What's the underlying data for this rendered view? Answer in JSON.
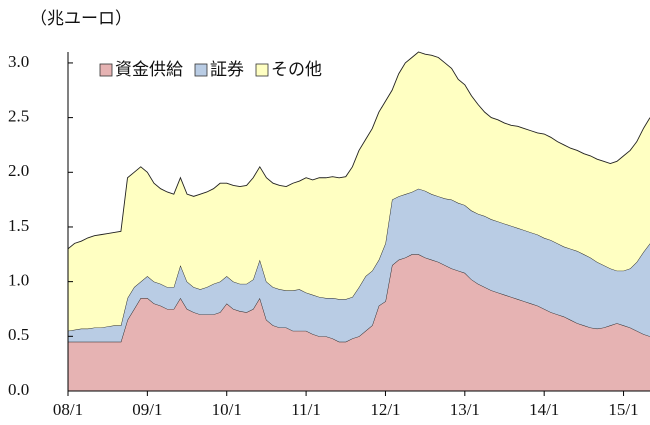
{
  "chart_data": {
    "type": "stacked_area",
    "unit_label": "（兆ユーロ）",
    "categories": [
      "08/1",
      null,
      null,
      null,
      null,
      null,
      null,
      null,
      null,
      null,
      null,
      null,
      "09/1",
      null,
      null,
      null,
      null,
      null,
      null,
      null,
      null,
      null,
      null,
      null,
      "10/1",
      null,
      null,
      null,
      null,
      null,
      null,
      null,
      null,
      null,
      null,
      null,
      "11/1",
      null,
      null,
      null,
      null,
      null,
      null,
      null,
      null,
      null,
      null,
      null,
      "12/1",
      null,
      null,
      null,
      null,
      null,
      null,
      null,
      null,
      null,
      null,
      null,
      "13/1",
      null,
      null,
      null,
      null,
      null,
      null,
      null,
      null,
      null,
      null,
      null,
      "14/1",
      null,
      null,
      null,
      null,
      null,
      null,
      null,
      null,
      null,
      null,
      null,
      "15/1",
      null,
      null,
      null,
      null
    ],
    "series": [
      {
        "name": "資金供給",
        "color": "#e6b3b3",
        "values": [
          0.45,
          0.45,
          0.45,
          0.45,
          0.45,
          0.45,
          0.45,
          0.45,
          0.45,
          0.65,
          0.75,
          0.85,
          0.85,
          0.8,
          0.78,
          0.75,
          0.75,
          0.85,
          0.75,
          0.72,
          0.7,
          0.7,
          0.7,
          0.72,
          0.8,
          0.75,
          0.73,
          0.72,
          0.75,
          0.85,
          0.65,
          0.6,
          0.58,
          0.58,
          0.55,
          0.55,
          0.55,
          0.52,
          0.5,
          0.5,
          0.48,
          0.45,
          0.45,
          0.48,
          0.5,
          0.55,
          0.6,
          0.78,
          0.82,
          1.15,
          1.2,
          1.22,
          1.25,
          1.25,
          1.22,
          1.2,
          1.18,
          1.15,
          1.12,
          1.1,
          1.08,
          1.02,
          0.98,
          0.95,
          0.92,
          0.9,
          0.88,
          0.86,
          0.84,
          0.82,
          0.8,
          0.78,
          0.75,
          0.72,
          0.7,
          0.68,
          0.65,
          0.62,
          0.6,
          0.58,
          0.57,
          0.58,
          0.6,
          0.62,
          0.6,
          0.58,
          0.55,
          0.52,
          0.5
        ]
      },
      {
        "name": "証券",
        "color": "#b9cce4",
        "values": [
          0.1,
          0.11,
          0.12,
          0.12,
          0.13,
          0.13,
          0.14,
          0.15,
          0.15,
          0.2,
          0.2,
          0.15,
          0.2,
          0.2,
          0.2,
          0.2,
          0.2,
          0.3,
          0.25,
          0.23,
          0.23,
          0.25,
          0.28,
          0.28,
          0.25,
          0.25,
          0.25,
          0.26,
          0.27,
          0.35,
          0.35,
          0.35,
          0.35,
          0.34,
          0.37,
          0.38,
          0.35,
          0.36,
          0.36,
          0.35,
          0.37,
          0.39,
          0.39,
          0.38,
          0.45,
          0.5,
          0.5,
          0.42,
          0.53,
          0.6,
          0.58,
          0.58,
          0.57,
          0.6,
          0.61,
          0.6,
          0.6,
          0.61,
          0.63,
          0.62,
          0.62,
          0.63,
          0.64,
          0.65,
          0.65,
          0.65,
          0.65,
          0.65,
          0.65,
          0.65,
          0.65,
          0.65,
          0.65,
          0.66,
          0.65,
          0.64,
          0.65,
          0.66,
          0.65,
          0.64,
          0.61,
          0.57,
          0.52,
          0.48,
          0.5,
          0.54,
          0.63,
          0.75,
          0.85
        ]
      },
      {
        "name": "その他",
        "color": "#ffffc2",
        "values": [
          0.75,
          0.79,
          0.8,
          0.83,
          0.84,
          0.85,
          0.85,
          0.85,
          0.86,
          1.1,
          1.05,
          1.05,
          0.95,
          0.9,
          0.87,
          0.87,
          0.85,
          0.8,
          0.8,
          0.83,
          0.87,
          0.87,
          0.87,
          0.9,
          0.85,
          0.88,
          0.89,
          0.9,
          0.93,
          0.85,
          0.95,
          0.95,
          0.95,
          0.95,
          0.98,
          0.99,
          1.05,
          1.05,
          1.09,
          1.1,
          1.11,
          1.11,
          1.12,
          1.19,
          1.25,
          1.25,
          1.3,
          1.35,
          1.3,
          1.0,
          1.12,
          1.2,
          1.23,
          1.25,
          1.25,
          1.27,
          1.27,
          1.24,
          1.2,
          1.13,
          1.1,
          1.05,
          1.0,
          0.95,
          0.93,
          0.93,
          0.92,
          0.92,
          0.93,
          0.93,
          0.93,
          0.93,
          0.95,
          0.94,
          0.93,
          0.93,
          0.92,
          0.92,
          0.92,
          0.93,
          0.94,
          0.95,
          0.96,
          1.0,
          1.05,
          1.08,
          1.1,
          1.13,
          1.15
        ]
      }
    ],
    "ylim": [
      0,
      3.1
    ],
    "yticks": [
      {
        "value": 0,
        "label": "0.0"
      },
      {
        "value": 0.5,
        "label": "0.5"
      },
      {
        "value": 1,
        "label": "1.0"
      },
      {
        "value": 1.5,
        "label": "1.5"
      },
      {
        "value": 2,
        "label": "2.0"
      },
      {
        "value": 2.5,
        "label": "2.5"
      },
      {
        "value": 3,
        "label": "3.0"
      }
    ],
    "legend": "upper left",
    "grid": false
  }
}
